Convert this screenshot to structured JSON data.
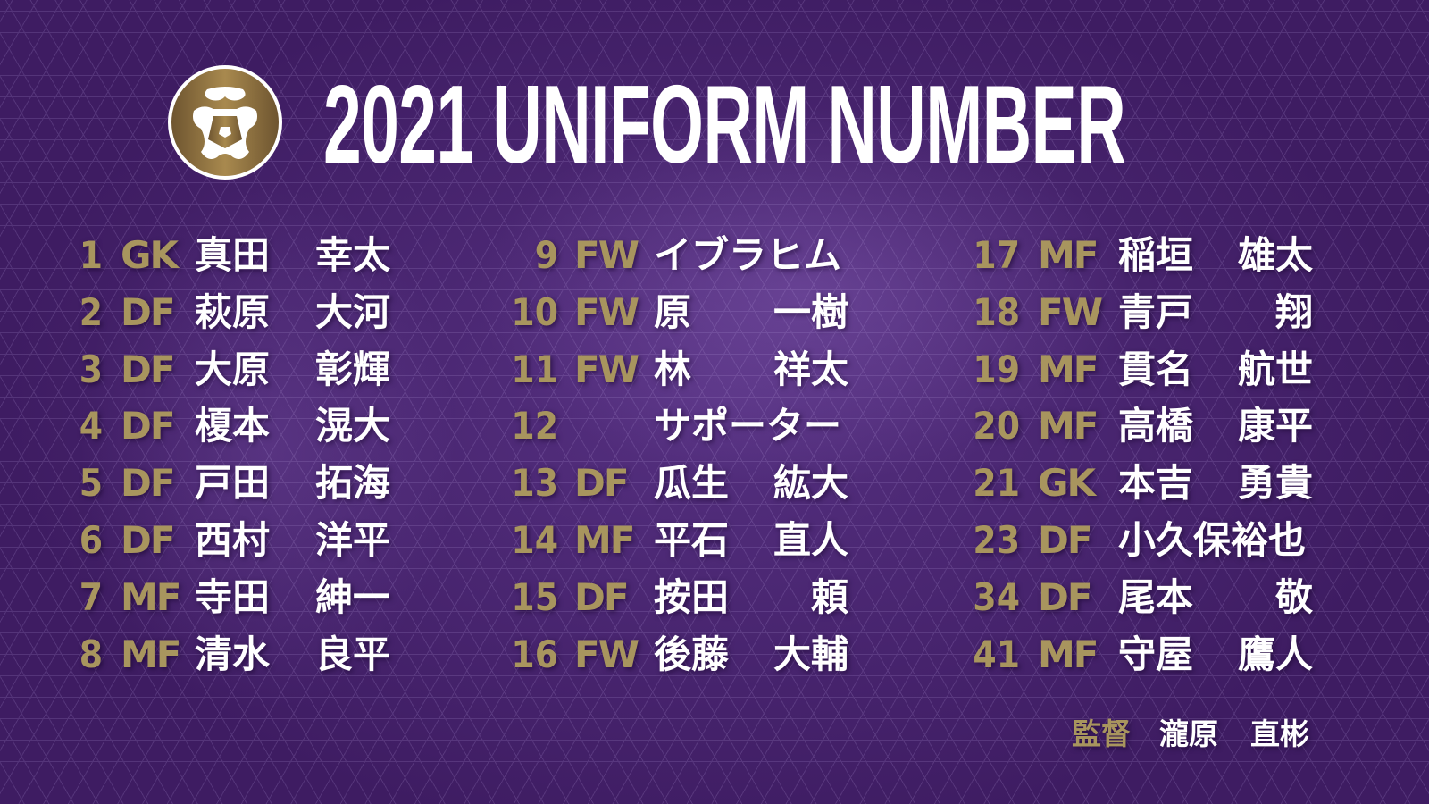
{
  "title": "2021 UNIFORM NUMBER",
  "colors": {
    "background": "#4a2370",
    "gold": "#a8955e",
    "text": "#ffffff"
  },
  "logo": {
    "icon": "club-emblem-icon"
  },
  "columns": [
    [
      {
        "number": "1",
        "position": "GK",
        "family": "真田",
        "given": "幸太"
      },
      {
        "number": "2",
        "position": "DF",
        "family": "萩原",
        "given": "大河"
      },
      {
        "number": "3",
        "position": "DF",
        "family": "大原",
        "given": "彰輝"
      },
      {
        "number": "4",
        "position": "DF",
        "family": "榎本",
        "given": "滉大"
      },
      {
        "number": "5",
        "position": "DF",
        "family": "戸田",
        "given": "拓海"
      },
      {
        "number": "6",
        "position": "DF",
        "family": "西村",
        "given": "洋平"
      },
      {
        "number": "7",
        "position": "MF",
        "family": "寺田",
        "given": "紳一"
      },
      {
        "number": "8",
        "position": "MF",
        "family": "清水",
        "given": "良平"
      }
    ],
    [
      {
        "number": "9",
        "position": "FW",
        "family": "イブラヒム",
        "given": ""
      },
      {
        "number": "10",
        "position": "FW",
        "family": "原",
        "given": "一樹"
      },
      {
        "number": "11",
        "position": "FW",
        "family": "林",
        "given": "祥太"
      },
      {
        "number": "12",
        "position": "",
        "family": "サポーター",
        "given": ""
      },
      {
        "number": "13",
        "position": "DF",
        "family": "瓜生",
        "given": "紘大"
      },
      {
        "number": "14",
        "position": "MF",
        "family": "平石",
        "given": "直人"
      },
      {
        "number": "15",
        "position": "DF",
        "family": "按田",
        "given": "頼"
      },
      {
        "number": "16",
        "position": "FW",
        "family": "後藤",
        "given": "大輔"
      }
    ],
    [
      {
        "number": "17",
        "position": "MF",
        "family": "稲垣",
        "given": "雄太"
      },
      {
        "number": "18",
        "position": "FW",
        "family": "青戸",
        "given": "翔"
      },
      {
        "number": "19",
        "position": "MF",
        "family": "貫名",
        "given": "航世"
      },
      {
        "number": "20",
        "position": "MF",
        "family": "高橋",
        "given": "康平"
      },
      {
        "number": "21",
        "position": "GK",
        "family": "本吉",
        "given": "勇貴"
      },
      {
        "number": "23",
        "position": "DF",
        "family": "小久保裕也",
        "given": ""
      },
      {
        "number": "34",
        "position": "DF",
        "family": "尾本",
        "given": "敬"
      },
      {
        "number": "41",
        "position": "MF",
        "family": "守屋",
        "given": "鷹人"
      }
    ]
  ],
  "coach": {
    "label": "監督",
    "family": "瀧原",
    "given": "直彬"
  }
}
